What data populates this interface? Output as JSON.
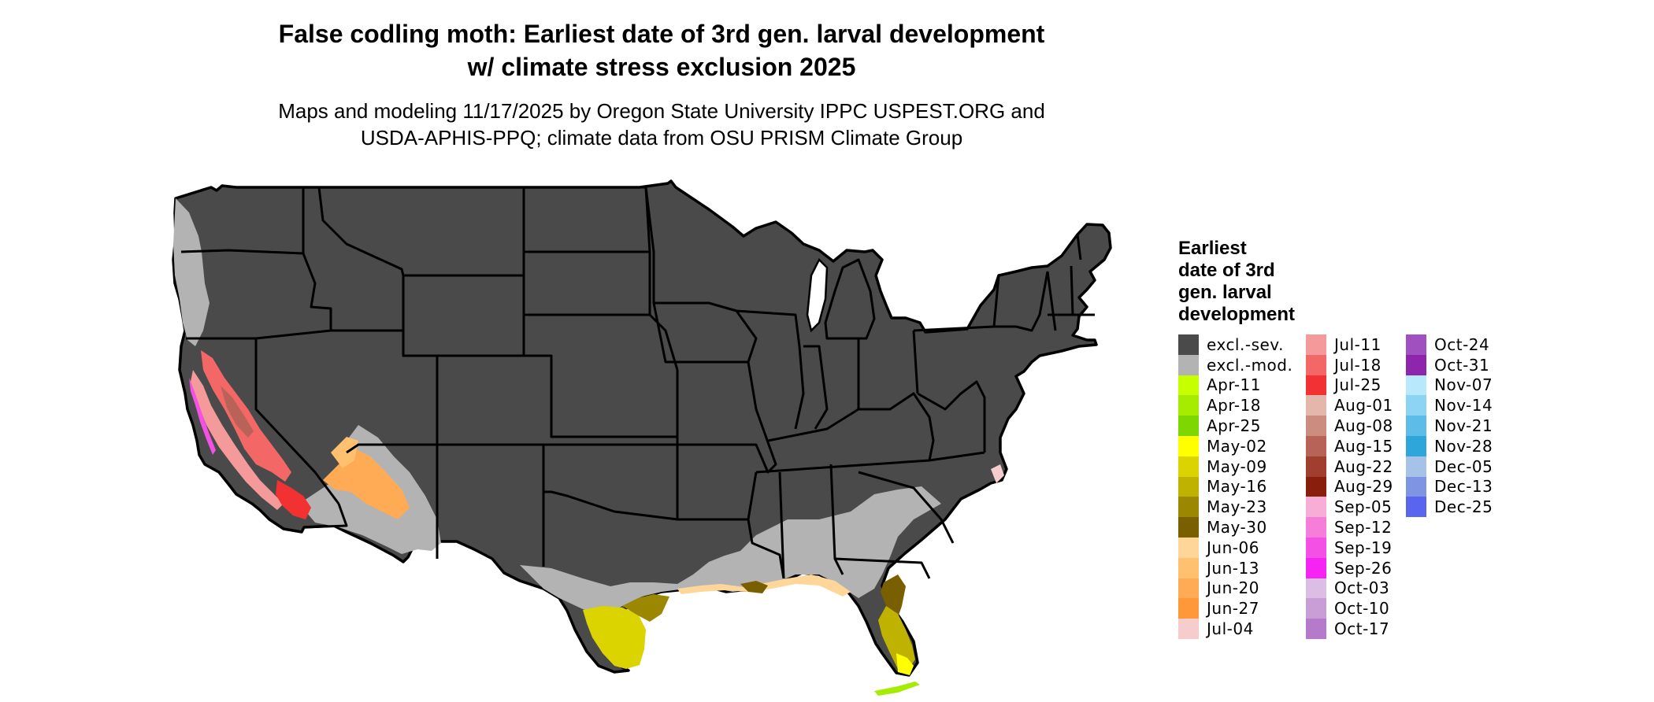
{
  "title": {
    "line1": "False codling moth: Earliest date of 3rd gen. larval development",
    "line2": "w/ climate stress exclusion 2025"
  },
  "subtitle": {
    "line1": "Maps and modeling 11/17/2025 by Oregon State University IPPC USPEST.ORG and",
    "line2": "USDA-APHIS-PPQ; climate data from OSU PRISM Climate Group"
  },
  "legend": {
    "title_lines": [
      "Earliest",
      "date of 3rd",
      "gen. larval",
      "development"
    ],
    "columns": [
      [
        {
          "label": "excl.-sev.",
          "color": "#4a4a4a"
        },
        {
          "label": "excl.-mod.",
          "color": "#b3b3b3"
        },
        {
          "label": "Apr-11",
          "color": "#c6ff00"
        },
        {
          "label": "Apr-18",
          "color": "#a6ec00"
        },
        {
          "label": "Apr-25",
          "color": "#7ed700"
        },
        {
          "label": "May-02",
          "color": "#ffff00"
        },
        {
          "label": "May-09",
          "color": "#dcd400"
        },
        {
          "label": "May-16",
          "color": "#bfb200"
        },
        {
          "label": "May-23",
          "color": "#9b8800"
        },
        {
          "label": "May-30",
          "color": "#7a5f00"
        },
        {
          "label": "Jun-06",
          "color": "#ffd699"
        },
        {
          "label": "Jun-13",
          "color": "#ffc170"
        },
        {
          "label": "Jun-20",
          "color": "#ffab55"
        },
        {
          "label": "Jun-27",
          "color": "#ff9838"
        },
        {
          "label": "Jul-04",
          "color": "#f7cccc"
        }
      ],
      [
        {
          "label": "Jul-11",
          "color": "#f59a9a"
        },
        {
          "label": "Jul-18",
          "color": "#f46767"
        },
        {
          "label": "Jul-25",
          "color": "#f23232"
        },
        {
          "label": "Aug-01",
          "color": "#e3b7ac"
        },
        {
          "label": "Aug-08",
          "color": "#cd8c80"
        },
        {
          "label": "Aug-15",
          "color": "#b76358"
        },
        {
          "label": "Aug-22",
          "color": "#a03f30"
        },
        {
          "label": "Aug-29",
          "color": "#891e0d"
        },
        {
          "label": "Sep-05",
          "color": "#f7add5"
        },
        {
          "label": "Sep-12",
          "color": "#f77ddb"
        },
        {
          "label": "Sep-19",
          "color": "#f450e6"
        },
        {
          "label": "Sep-26",
          "color": "#f524f5"
        },
        {
          "label": "Oct-03",
          "color": "#dcbde3"
        },
        {
          "label": "Oct-10",
          "color": "#c89ed7"
        },
        {
          "label": "Oct-17",
          "color": "#b57bca"
        }
      ],
      [
        {
          "label": "Oct-24",
          "color": "#a150c0"
        },
        {
          "label": "Oct-31",
          "color": "#8e26ad"
        },
        {
          "label": "Nov-07",
          "color": "#b7e8fb"
        },
        {
          "label": "Nov-14",
          "color": "#8dd3f3"
        },
        {
          "label": "Nov-21",
          "color": "#5ebde8"
        },
        {
          "label": "Nov-28",
          "color": "#2ea6d9"
        },
        {
          "label": "Dec-05",
          "color": "#a5c3e8"
        },
        {
          "label": "Dec-13",
          "color": "#7f95e3"
        },
        {
          "label": "Dec-25",
          "color": "#5a65ef"
        }
      ]
    ]
  }
}
